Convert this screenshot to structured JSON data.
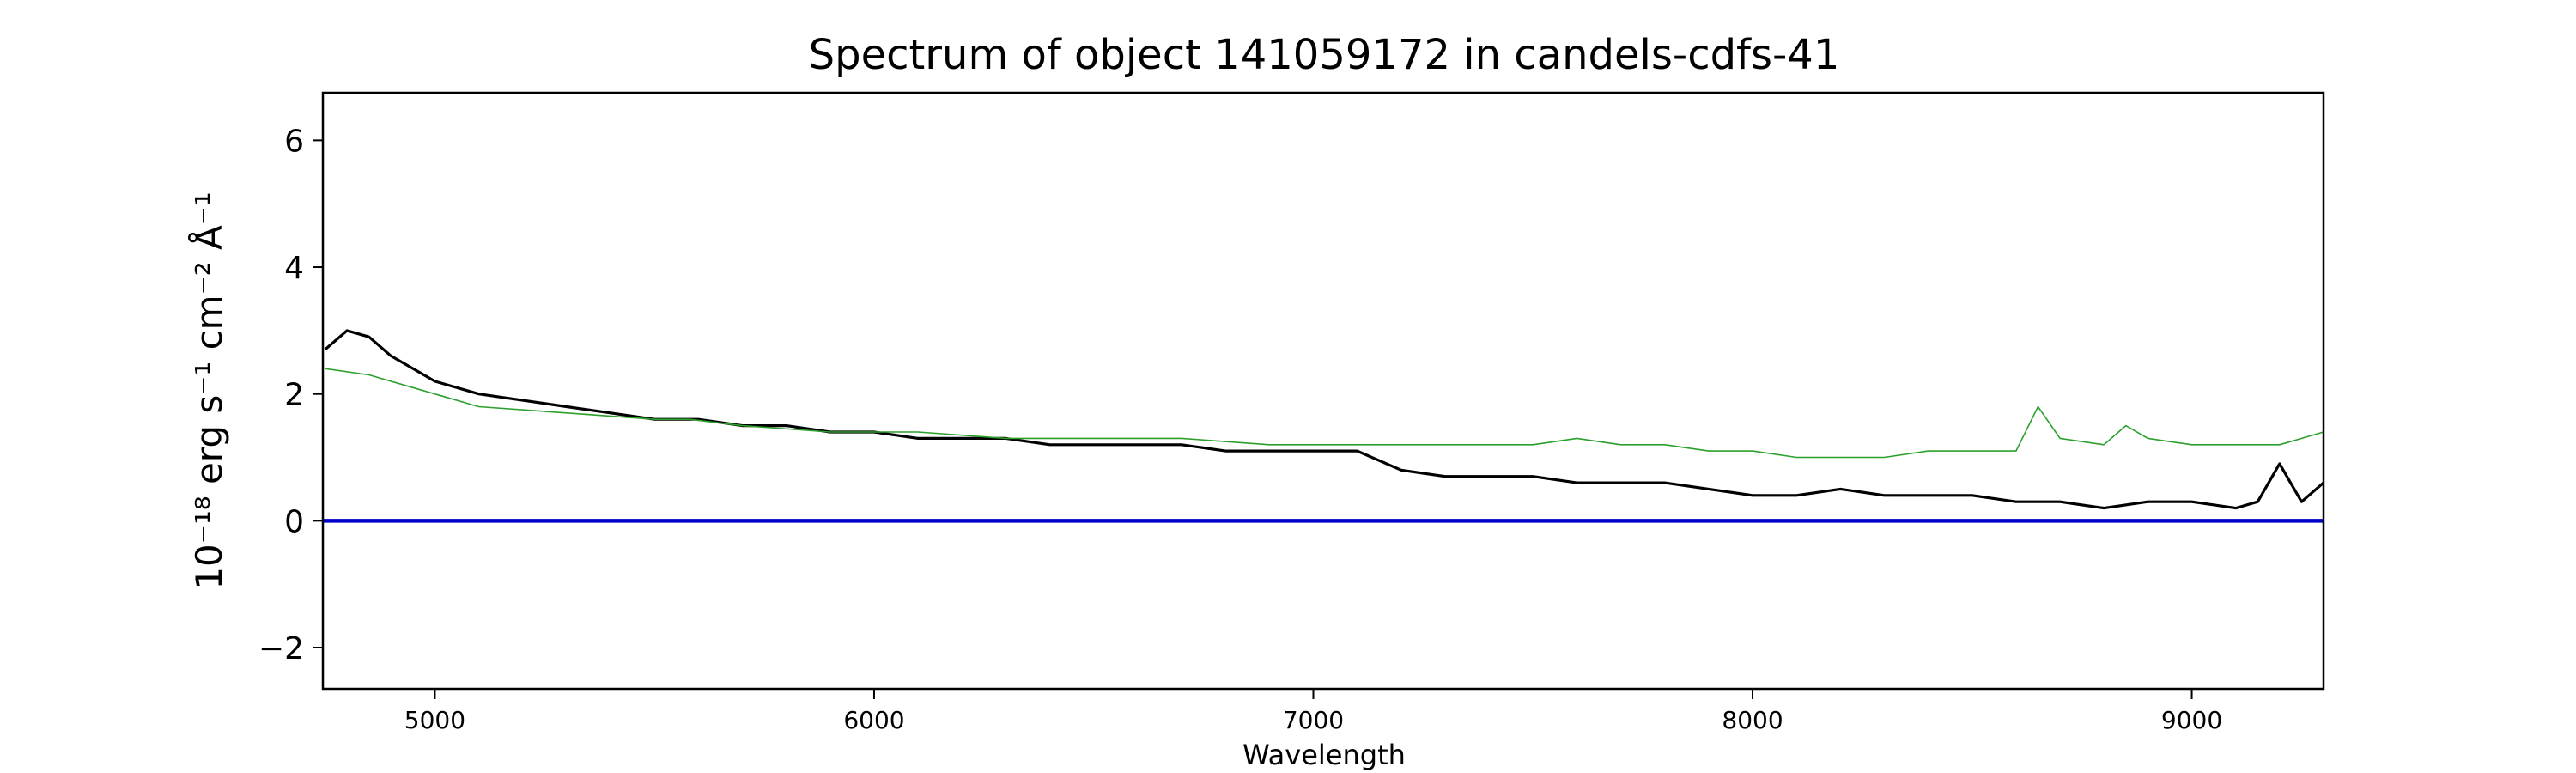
{
  "chart_data": {
    "type": "line",
    "title": "Spectrum of object 141059172 in candels-cdfs-41",
    "xlabel": "Wavelength",
    "ylabel": "10⁻¹⁸ erg s⁻¹ cm⁻² Å⁻¹",
    "xlim": [
      4745,
      9300
    ],
    "ylim": [
      -2.65,
      6.75
    ],
    "xticks": [
      5000,
      6000,
      7000,
      8000,
      9000
    ],
    "yticks": [
      -2,
      0,
      2,
      4,
      6
    ],
    "grid": false,
    "legend": "none",
    "series": [
      {
        "color": "#000000",
        "x": [
          4750,
          4800,
          4850,
          4900,
          5000,
          5100,
          5200,
          5300,
          5400,
          5500,
          5600,
          5700,
          5800,
          5900,
          6000,
          6100,
          6200,
          6300,
          6400,
          6500,
          6600,
          6700,
          6800,
          6900,
          7000,
          7100,
          7200,
          7300,
          7400,
          7500,
          7600,
          7700,
          7800,
          7900,
          8000,
          8100,
          8200,
          8300,
          8400,
          8500,
          8600,
          8700,
          8800,
          8900,
          9000,
          9100,
          9150,
          9200,
          9250,
          9300
        ],
        "y": [
          2.7,
          3.0,
          2.9,
          2.6,
          2.2,
          2.0,
          1.9,
          1.8,
          1.7,
          1.6,
          1.6,
          1.5,
          1.5,
          1.4,
          1.4,
          1.3,
          1.3,
          1.3,
          1.2,
          1.2,
          1.2,
          1.2,
          1.1,
          1.1,
          1.1,
          1.1,
          0.8,
          0.7,
          0.7,
          0.7,
          0.6,
          0.6,
          0.6,
          0.5,
          0.4,
          0.4,
          0.5,
          0.4,
          0.4,
          0.4,
          0.3,
          0.3,
          0.2,
          0.3,
          0.3,
          0.2,
          0.3,
          0.9,
          0.3,
          0.6
        ]
      },
      {
        "color": "#2ca02c",
        "x": [
          4750,
          4850,
          4950,
          5100,
          5300,
          5500,
          5580,
          5700,
          5900,
          6100,
          6300,
          6500,
          6700,
          6900,
          7100,
          7300,
          7500,
          7600,
          7700,
          7800,
          7900,
          8000,
          8100,
          8200,
          8300,
          8400,
          8500,
          8600,
          8650,
          8700,
          8800,
          8850,
          8900,
          9000,
          9100,
          9200,
          9300
        ],
        "y": [
          2.4,
          2.3,
          2.1,
          1.8,
          1.7,
          1.6,
          1.6,
          1.5,
          1.4,
          1.4,
          1.3,
          1.3,
          1.3,
          1.2,
          1.2,
          1.2,
          1.2,
          1.3,
          1.2,
          1.2,
          1.1,
          1.1,
          1.0,
          1.0,
          1.0,
          1.1,
          1.1,
          1.1,
          1.8,
          1.3,
          1.2,
          1.5,
          1.3,
          1.2,
          1.2,
          1.2,
          1.4
        ]
      },
      {
        "color": "#0000cc",
        "x": [
          4745,
          9300
        ],
        "y": [
          0,
          0
        ]
      }
    ]
  }
}
